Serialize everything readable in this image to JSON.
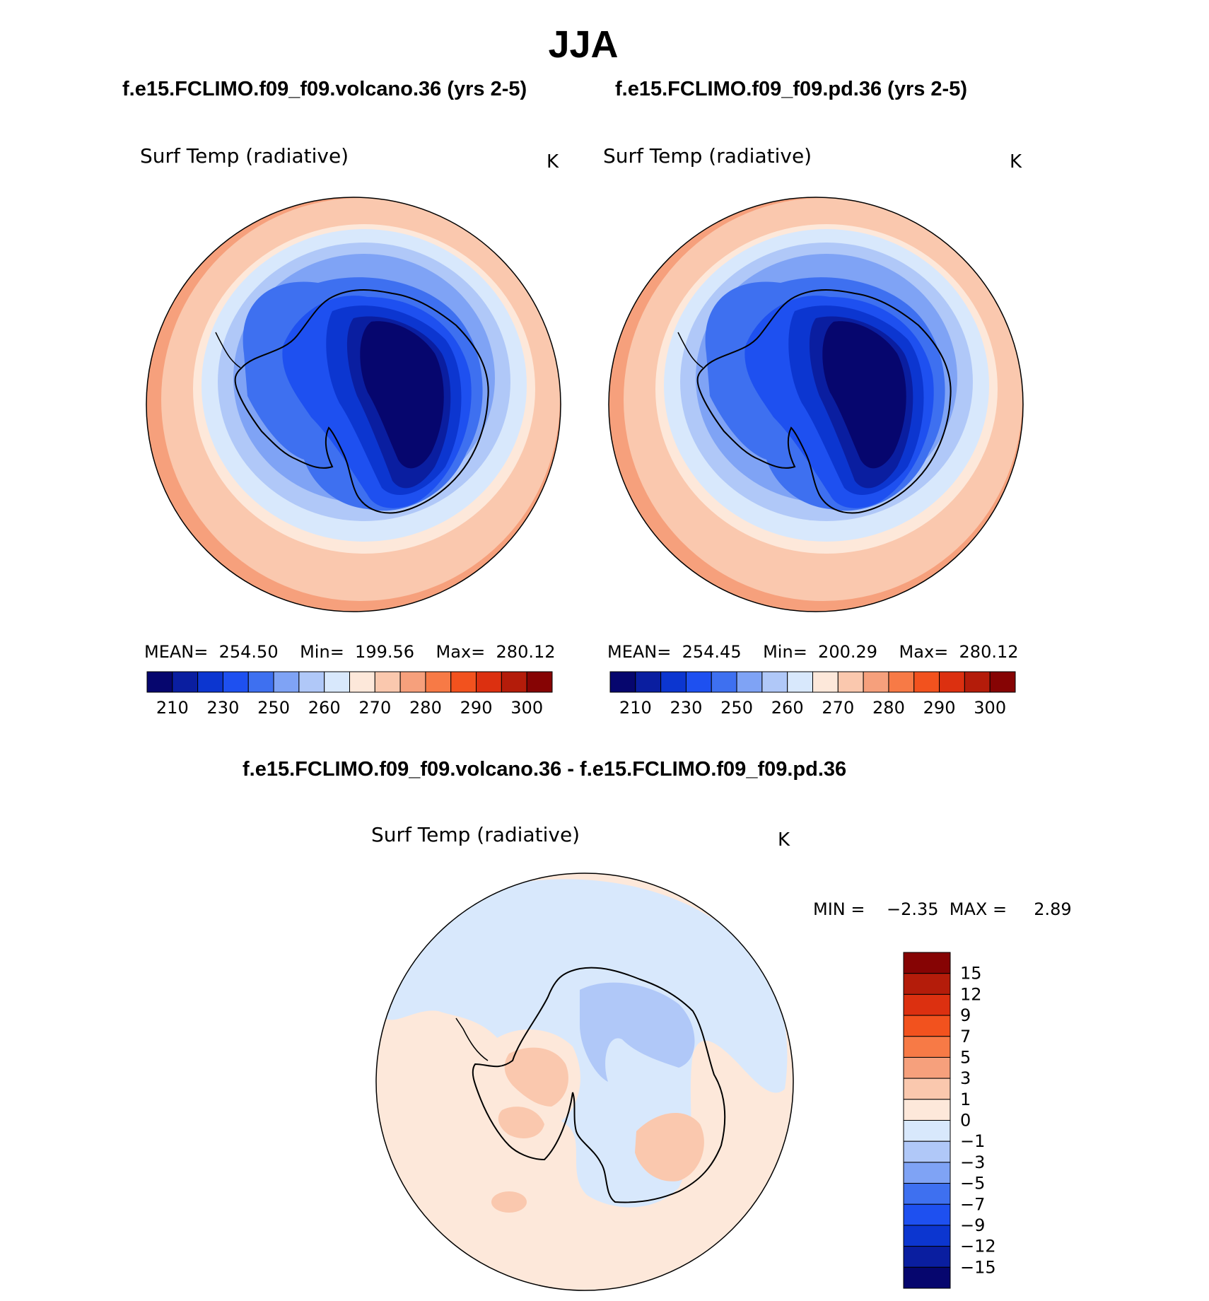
{
  "figure": {
    "title": "JJA",
    "case1_title": "f.e15.FCLIMO.f09_f09.volcano.36 (yrs 2-5)",
    "case2_title": "f.e15.FCLIMO.f09_f09.pd.36 (yrs 2-5)",
    "diff_title": "f.e15.FCLIMO.f09_f09.volcano.36 - f.e15.FCLIMO.f09_f09.pd.36"
  },
  "panels": [
    {
      "variable": "Surf Temp (radiative)",
      "units": "K",
      "stats": "MEAN=  254.50    Min=  199.56    Max=  280.12"
    },
    {
      "variable": "Surf Temp (radiative)",
      "units": "K",
      "stats": "MEAN=  254.45    Min=  200.29    Max=  280.12"
    },
    {
      "variable": "Surf Temp (radiative)",
      "units": "K",
      "stats": "MIN =    −2.35  MAX =     2.89"
    }
  ],
  "colorbar_abs": {
    "colors": [
      "#06066e",
      "#0a1ea0",
      "#0c36d0",
      "#1e50f0",
      "#3e70f0",
      "#7fa3f5",
      "#b0c8f8",
      "#d8e8fc",
      "#fde8da",
      "#fac8ae",
      "#f6a07c",
      "#f77a46",
      "#f2521e",
      "#dc3010",
      "#b41c0a",
      "#860404"
    ],
    "labels": [
      "210",
      "230",
      "250",
      "260",
      "270",
      "280",
      "290",
      "300"
    ]
  },
  "colorbar_diff": {
    "colors": [
      "#860404",
      "#b41c0a",
      "#dc3010",
      "#f2521e",
      "#f77a46",
      "#f6a07c",
      "#fac8ae",
      "#fde8da",
      "#d8e8fc",
      "#b0c8f8",
      "#7fa3f5",
      "#3e70f0",
      "#1e50f0",
      "#0c36d0",
      "#0a1ea0",
      "#06066e"
    ],
    "labels": [
      "15",
      "12",
      "9",
      "7",
      "5",
      "3",
      "1",
      "0",
      "−1",
      "−3",
      "−5",
      "−7",
      "−9",
      "−12",
      "−15"
    ]
  }
}
